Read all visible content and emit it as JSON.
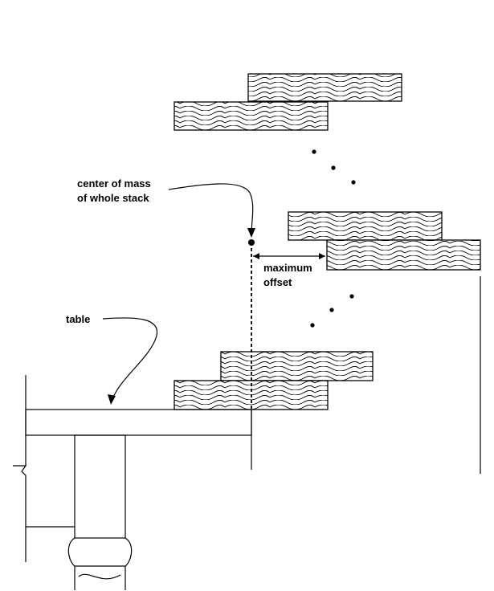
{
  "labels": {
    "center_of_mass_line1": "center of mass",
    "center_of_mass_line2": "of whole stack",
    "maximum_offset_line1": "maximum",
    "maximum_offset_line2": "offset",
    "table": "table"
  },
  "colors": {
    "ink": "#000000",
    "background": "#ffffff"
  }
}
